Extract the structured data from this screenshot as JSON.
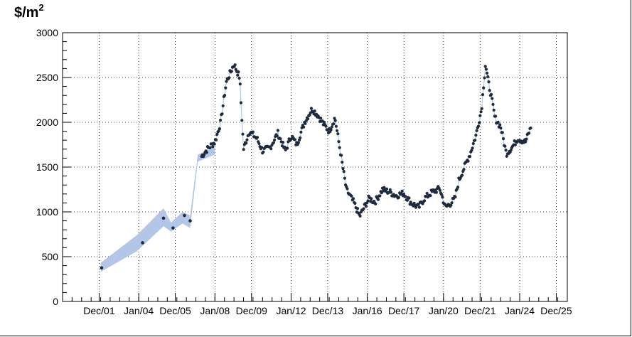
{
  "chart_data": {
    "type": "scatter",
    "ylabel_main": "$/m",
    "ylabel_sup": "2",
    "xlim": [
      2000.0,
      2026.5
    ],
    "ylim": [
      0,
      3000
    ],
    "y_ticks": [
      0,
      500,
      1000,
      1500,
      2000,
      2500,
      3000
    ],
    "x_ticks": [
      {
        "label": "Dec/01",
        "x": 2001.92
      },
      {
        "label": "Jan/04",
        "x": 2004.0
      },
      {
        "label": "Dec/05",
        "x": 2005.92
      },
      {
        "label": "Jan/08",
        "x": 2008.0
      },
      {
        "label": "Dec/09",
        "x": 2009.92
      },
      {
        "label": "Jan/12",
        "x": 2012.0
      },
      {
        "label": "Dec/13",
        "x": 2013.92
      },
      {
        "label": "Jan/16",
        "x": 2016.0
      },
      {
        "label": "Dec/17",
        "x": 2017.92
      },
      {
        "label": "Jan/20",
        "x": 2020.0
      },
      {
        "label": "Dec/21",
        "x": 2021.92
      },
      {
        "label": "Jan/24",
        "x": 2024.0
      },
      {
        "label": "Dec/25",
        "x": 2025.92
      }
    ],
    "grid": true,
    "band_color": "#b4c6e7",
    "marker_color": "#1f2a3c",
    "band": {
      "x": [
        2002.0,
        2003.9,
        2005.3,
        2005.7,
        2006.3,
        2006.7,
        2007.1,
        2008.0
      ],
      "lower": [
        330,
        560,
        840,
        780,
        870,
        820,
        1560,
        1640
      ],
      "upper": [
        430,
        740,
        1040,
        880,
        1000,
        960,
        1640,
        1720
      ]
    },
    "sparse_points": [
      {
        "x": 2002.05,
        "y": 375
      },
      {
        "x": 2004.2,
        "y": 655
      },
      {
        "x": 2005.3,
        "y": 930
      },
      {
        "x": 2005.8,
        "y": 820
      },
      {
        "x": 2006.4,
        "y": 960
      },
      {
        "x": 2006.7,
        "y": 900
      }
    ],
    "series_anchors": {
      "x": [
        2007.3,
        2007.6,
        2008.0,
        2008.3,
        2008.6,
        2009.0,
        2009.3,
        2009.5,
        2009.8,
        2010.2,
        2010.5,
        2010.9,
        2011.3,
        2011.7,
        2012.0,
        2012.3,
        2012.7,
        2013.1,
        2013.4,
        2013.7,
        2014.0,
        2014.3,
        2014.6,
        2014.9,
        2015.3,
        2015.6,
        2015.9,
        2016.1,
        2016.4,
        2016.8,
        2017.2,
        2017.5,
        2017.9,
        2018.3,
        2018.7,
        2019.0,
        2019.4,
        2019.8,
        2020.1,
        2020.4,
        2020.6,
        2020.8,
        2021.1,
        2021.4,
        2021.7,
        2022.0,
        2022.2,
        2022.35,
        2022.5,
        2022.7,
        2023.0,
        2023.3,
        2023.6,
        2023.9,
        2024.3,
        2024.6
      ],
      "y": [
        1620,
        1700,
        1780,
        2000,
        2450,
        2650,
        2500,
        1700,
        1900,
        1820,
        1680,
        1720,
        1880,
        1680,
        1850,
        1750,
        2000,
        2150,
        2080,
        1980,
        1900,
        2050,
        1650,
        1250,
        1100,
        950,
        1080,
        1150,
        1110,
        1250,
        1220,
        1180,
        1210,
        1100,
        1050,
        1150,
        1220,
        1260,
        1050,
        1100,
        1150,
        1350,
        1500,
        1650,
        1850,
        2150,
        2650,
        2450,
        2300,
        2050,
        1950,
        1650,
        1720,
        1820,
        1780,
        1950
      ]
    }
  }
}
